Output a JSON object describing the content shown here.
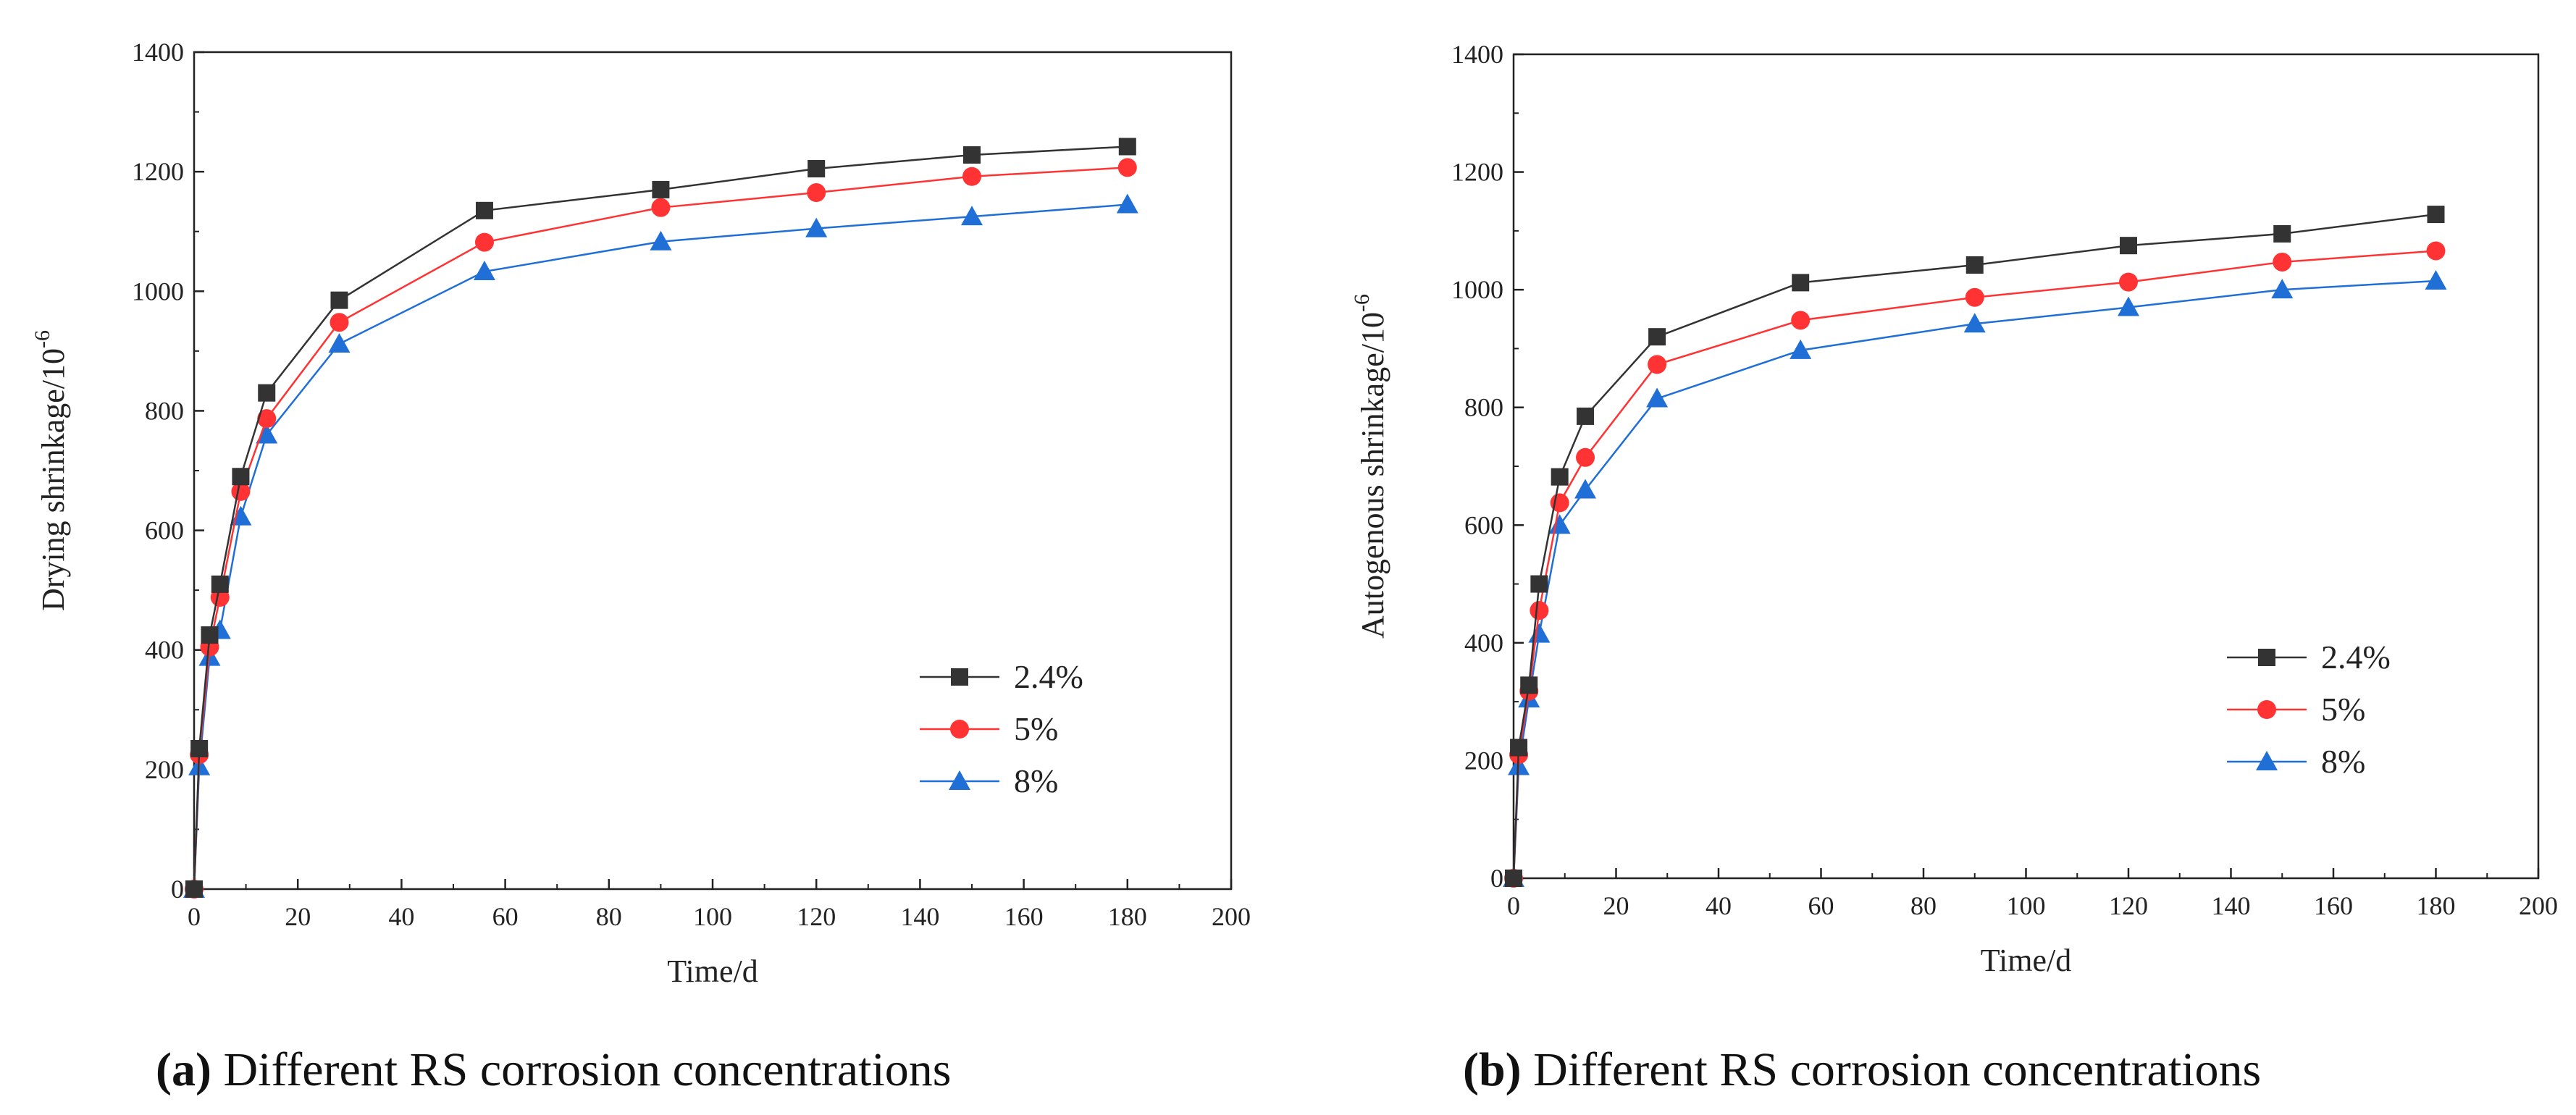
{
  "chart_data": [
    {
      "type": "line",
      "panel": "a",
      "caption_label": "(a)",
      "caption_text": "Different RS corrosion concentrations",
      "xlabel": "Time/d",
      "ylabel": "Drying shrinkage/10",
      "ylabel_exp": "-6",
      "xlim": [
        0,
        200
      ],
      "ylim": [
        0,
        1400
      ],
      "xticks": [
        0,
        20,
        40,
        60,
        80,
        100,
        120,
        140,
        160,
        180,
        200
      ],
      "yticks": [
        0,
        200,
        400,
        600,
        800,
        1000,
        1200,
        1400
      ],
      "legend_position": "lower-right",
      "series": [
        {
          "name": "2.4%",
          "color": "#333333",
          "marker": "square",
          "x": [
            0,
            1,
            3,
            5,
            9,
            14,
            28,
            56,
            90,
            120,
            150,
            180
          ],
          "y": [
            0,
            235,
            425,
            510,
            690,
            830,
            985,
            1135,
            1170,
            1205,
            1228,
            1242
          ]
        },
        {
          "name": "5%",
          "color": "#ff3333",
          "marker": "circle",
          "x": [
            0,
            1,
            3,
            5,
            9,
            14,
            28,
            56,
            90,
            120,
            150,
            180
          ],
          "y": [
            0,
            225,
            405,
            488,
            665,
            787,
            948,
            1082,
            1140,
            1165,
            1192,
            1207
          ]
        },
        {
          "name": "8%",
          "color": "#1f6fd6",
          "marker": "triangle",
          "x": [
            0,
            1,
            3,
            5,
            9,
            14,
            28,
            56,
            90,
            120,
            150,
            180
          ],
          "y": [
            0,
            205,
            388,
            433,
            623,
            760,
            912,
            1033,
            1083,
            1105,
            1125,
            1145
          ]
        }
      ]
    },
    {
      "type": "line",
      "panel": "b",
      "caption_label": "(b)",
      "caption_text": "Different RS corrosion concentrations",
      "xlabel": "Time/d",
      "ylabel": "Autogenous shrinkage/10",
      "ylabel_exp": "-6",
      "xlim": [
        0,
        200
      ],
      "ylim": [
        0,
        1400
      ],
      "xticks": [
        0,
        20,
        40,
        60,
        80,
        100,
        120,
        140,
        160,
        180,
        200
      ],
      "yticks": [
        0,
        200,
        400,
        600,
        800,
        1000,
        1200,
        1400
      ],
      "legend_position": "lower-right",
      "series": [
        {
          "name": "2.4%",
          "color": "#333333",
          "marker": "square",
          "x": [
            0,
            1,
            3,
            5,
            9,
            14,
            28,
            56,
            90,
            120,
            150,
            180
          ],
          "y": [
            0,
            222,
            328,
            500,
            682,
            785,
            920,
            1012,
            1042,
            1075,
            1095,
            1128
          ]
        },
        {
          "name": "5%",
          "color": "#ff3333",
          "marker": "circle",
          "x": [
            0,
            1,
            3,
            5,
            9,
            14,
            28,
            56,
            90,
            120,
            150,
            180
          ],
          "y": [
            0,
            210,
            318,
            455,
            638,
            715,
            873,
            948,
            987,
            1013,
            1047,
            1066
          ]
        },
        {
          "name": "8%",
          "color": "#1f6fd6",
          "marker": "triangle",
          "x": [
            0,
            1,
            3,
            5,
            9,
            14,
            28,
            56,
            90,
            120,
            150,
            180
          ],
          "y": [
            0,
            190,
            305,
            415,
            600,
            660,
            815,
            897,
            942,
            970,
            1000,
            1015
          ]
        }
      ]
    }
  ]
}
